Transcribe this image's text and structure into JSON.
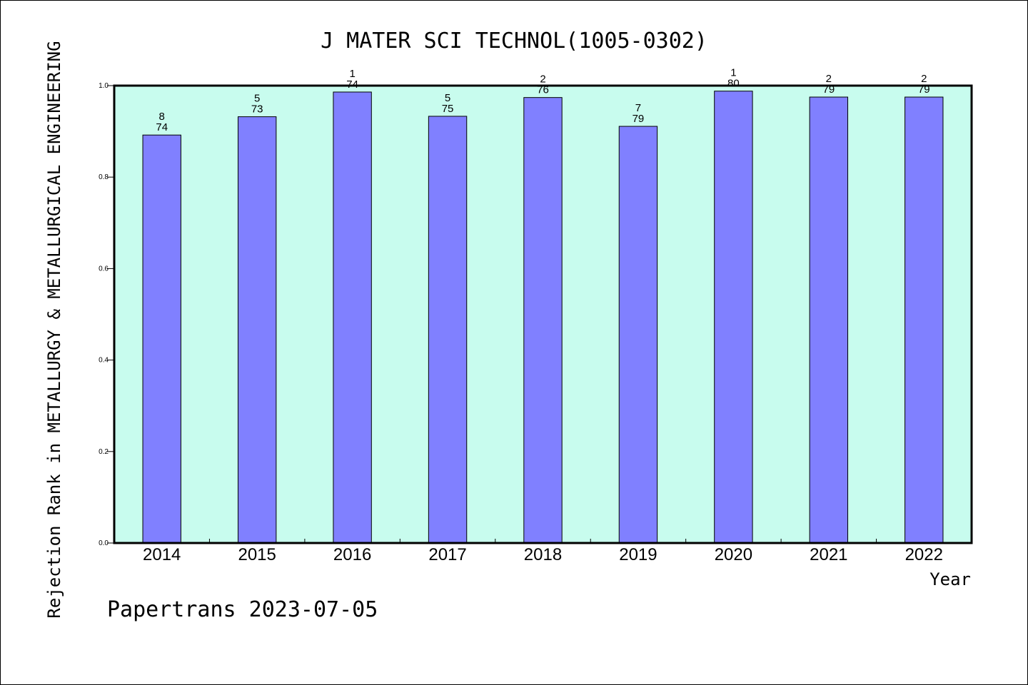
{
  "chart_data": {
    "type": "bar",
    "title": "J MATER SCI TECHNOL(1005-0302)",
    "ylabel": "Rejection Rank in METALLURGY & METALLURGICAL ENGINEERING",
    "xlabel": "Year",
    "categories": [
      "2014",
      "2015",
      "2016",
      "2017",
      "2018",
      "2019",
      "2020",
      "2021",
      "2022"
    ],
    "values": [
      0.892,
      0.932,
      0.986,
      0.933,
      0.974,
      0.911,
      0.988,
      0.975,
      0.975
    ],
    "rank_labels": [
      "8",
      "5",
      "1",
      "5",
      "2",
      "7",
      "1",
      "2",
      "2"
    ],
    "total_labels": [
      "74",
      "73",
      "74",
      "75",
      "76",
      "79",
      "80",
      "79",
      "79"
    ],
    "ylim": [
      0,
      1.0
    ],
    "yticks": [
      "0.0",
      "0.2",
      "0.4",
      "0.6",
      "0.8",
      "1.0"
    ],
    "grid": false,
    "colors": {
      "plot_background": "#c8fcee",
      "bar_fill": "#8080ff",
      "bar_edge": "#000000"
    }
  },
  "footer": {
    "text": "Papertrans 2023-07-05"
  }
}
